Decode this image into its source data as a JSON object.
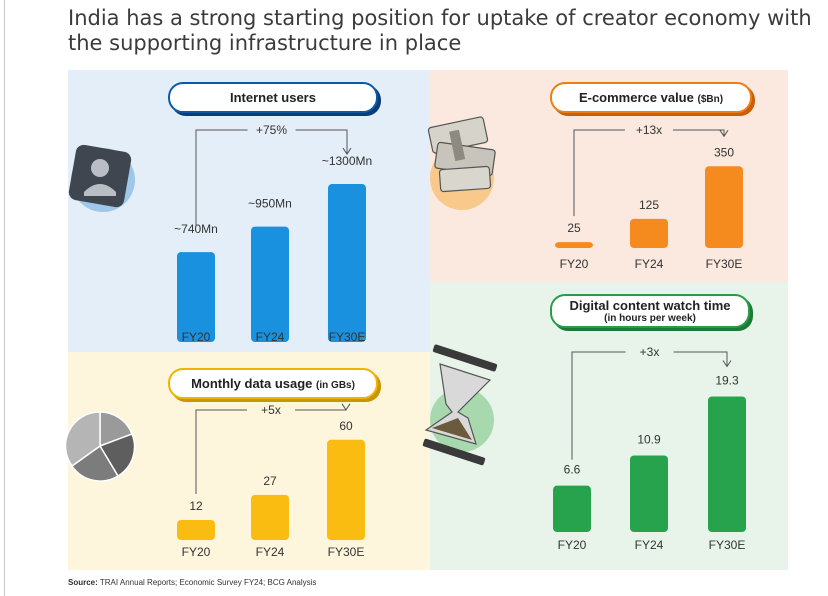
{
  "title": {
    "line1": "India has a strong starting position for uptake of creator economy with",
    "line2": "the supporting infrastructure in place"
  },
  "source": {
    "label": "Source:",
    "text": "TRAI Annual Reports; Economic Survey FY24; BCG Analysis"
  },
  "icons": [
    "user-icon",
    "cash-bundle-icon",
    "pie-chart-icon",
    "hourglass-icon"
  ],
  "colors": {
    "internet": "#1a91de",
    "ecommerce": "#f58a1f",
    "data": "#fbbc12",
    "watch": "#26a34c"
  },
  "chart_data": [
    {
      "type": "bar",
      "title": "Internet users",
      "categories": [
        "FY20",
        "FY24",
        "FY30E"
      ],
      "values": [
        740,
        950,
        1300
      ],
      "value_labels": [
        "~740Mn",
        "~950Mn",
        "~1300Mn"
      ],
      "growth_label": "+75%",
      "color": "#1a91de"
    },
    {
      "type": "bar",
      "title": "E-commerce value",
      "unit": "($Bn)",
      "categories": [
        "FY20",
        "FY24",
        "FY30E"
      ],
      "values": [
        25,
        125,
        350
      ],
      "value_labels": [
        "25",
        "125",
        "350"
      ],
      "growth_label": "+13x",
      "color": "#f58a1f"
    },
    {
      "type": "bar",
      "title": "Monthly data usage",
      "unit": "(in GBs)",
      "categories": [
        "FY20",
        "FY24",
        "FY30E"
      ],
      "values": [
        12,
        27,
        60
      ],
      "value_labels": [
        "12",
        "27",
        "60"
      ],
      "growth_label": "+5x",
      "color": "#fbbc12"
    },
    {
      "type": "bar",
      "title": "Digital content watch time",
      "unit": "(in hours per week)",
      "categories": [
        "FY20",
        "FY24",
        "FY30E"
      ],
      "values": [
        6.6,
        10.9,
        19.3
      ],
      "value_labels": [
        "6.6",
        "10.9",
        "19.3"
      ],
      "growth_label": "+3x",
      "color": "#26a34c"
    }
  ]
}
